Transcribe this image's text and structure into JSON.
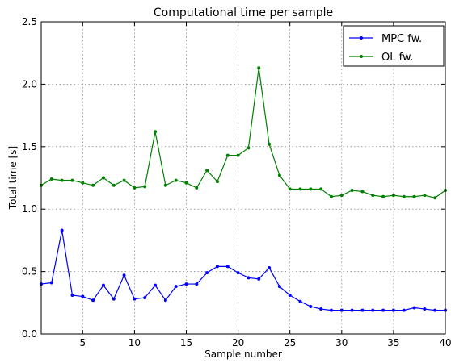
{
  "chart_data": {
    "type": "line",
    "title": "Computational time per sample",
    "xlabel": "Sample number",
    "ylabel": "Total time [s]",
    "xlim": [
      1,
      40
    ],
    "ylim": [
      0.0,
      2.5
    ],
    "xticks": [
      5,
      10,
      15,
      20,
      25,
      30,
      35,
      40
    ],
    "yticks": [
      0.0,
      0.5,
      1.0,
      1.5,
      2.0,
      2.5
    ],
    "xtick_labels": [
      "5",
      "10",
      "15",
      "20",
      "25",
      "30",
      "35",
      "40"
    ],
    "ytick_labels": [
      "0.0",
      "0.5",
      "1.0",
      "1.5",
      "2.0",
      "2.5"
    ],
    "grid": true,
    "legend_position": "top-right",
    "x": [
      1,
      2,
      3,
      4,
      5,
      6,
      7,
      8,
      9,
      10,
      11,
      12,
      13,
      14,
      15,
      16,
      17,
      18,
      19,
      20,
      21,
      22,
      23,
      24,
      25,
      26,
      27,
      28,
      29,
      30,
      31,
      32,
      33,
      34,
      35,
      36,
      37,
      38,
      39,
      40
    ],
    "series": [
      {
        "name": "MPC fw.",
        "color": "#0000ff",
        "values": [
          0.4,
          0.41,
          0.83,
          0.31,
          0.3,
          0.27,
          0.39,
          0.28,
          0.47,
          0.28,
          0.29,
          0.39,
          0.27,
          0.38,
          0.4,
          0.4,
          0.49,
          0.54,
          0.54,
          0.49,
          0.45,
          0.44,
          0.53,
          0.38,
          0.31,
          0.26,
          0.22,
          0.2,
          0.19,
          0.19,
          0.19,
          0.19,
          0.19,
          0.19,
          0.19,
          0.19,
          0.21,
          0.2,
          0.19,
          0.19
        ]
      },
      {
        "name": "OL fw.",
        "color": "#008000",
        "values": [
          1.19,
          1.24,
          1.23,
          1.23,
          1.21,
          1.19,
          1.25,
          1.19,
          1.23,
          1.17,
          1.18,
          1.62,
          1.19,
          1.23,
          1.21,
          1.17,
          1.31,
          1.22,
          1.43,
          1.43,
          1.49,
          2.13,
          1.52,
          1.27,
          1.16,
          1.16,
          1.16,
          1.16,
          1.1,
          1.11,
          1.15,
          1.14,
          1.11,
          1.1,
          1.11,
          1.1,
          1.1,
          1.11,
          1.09,
          1.15
        ]
      }
    ]
  }
}
